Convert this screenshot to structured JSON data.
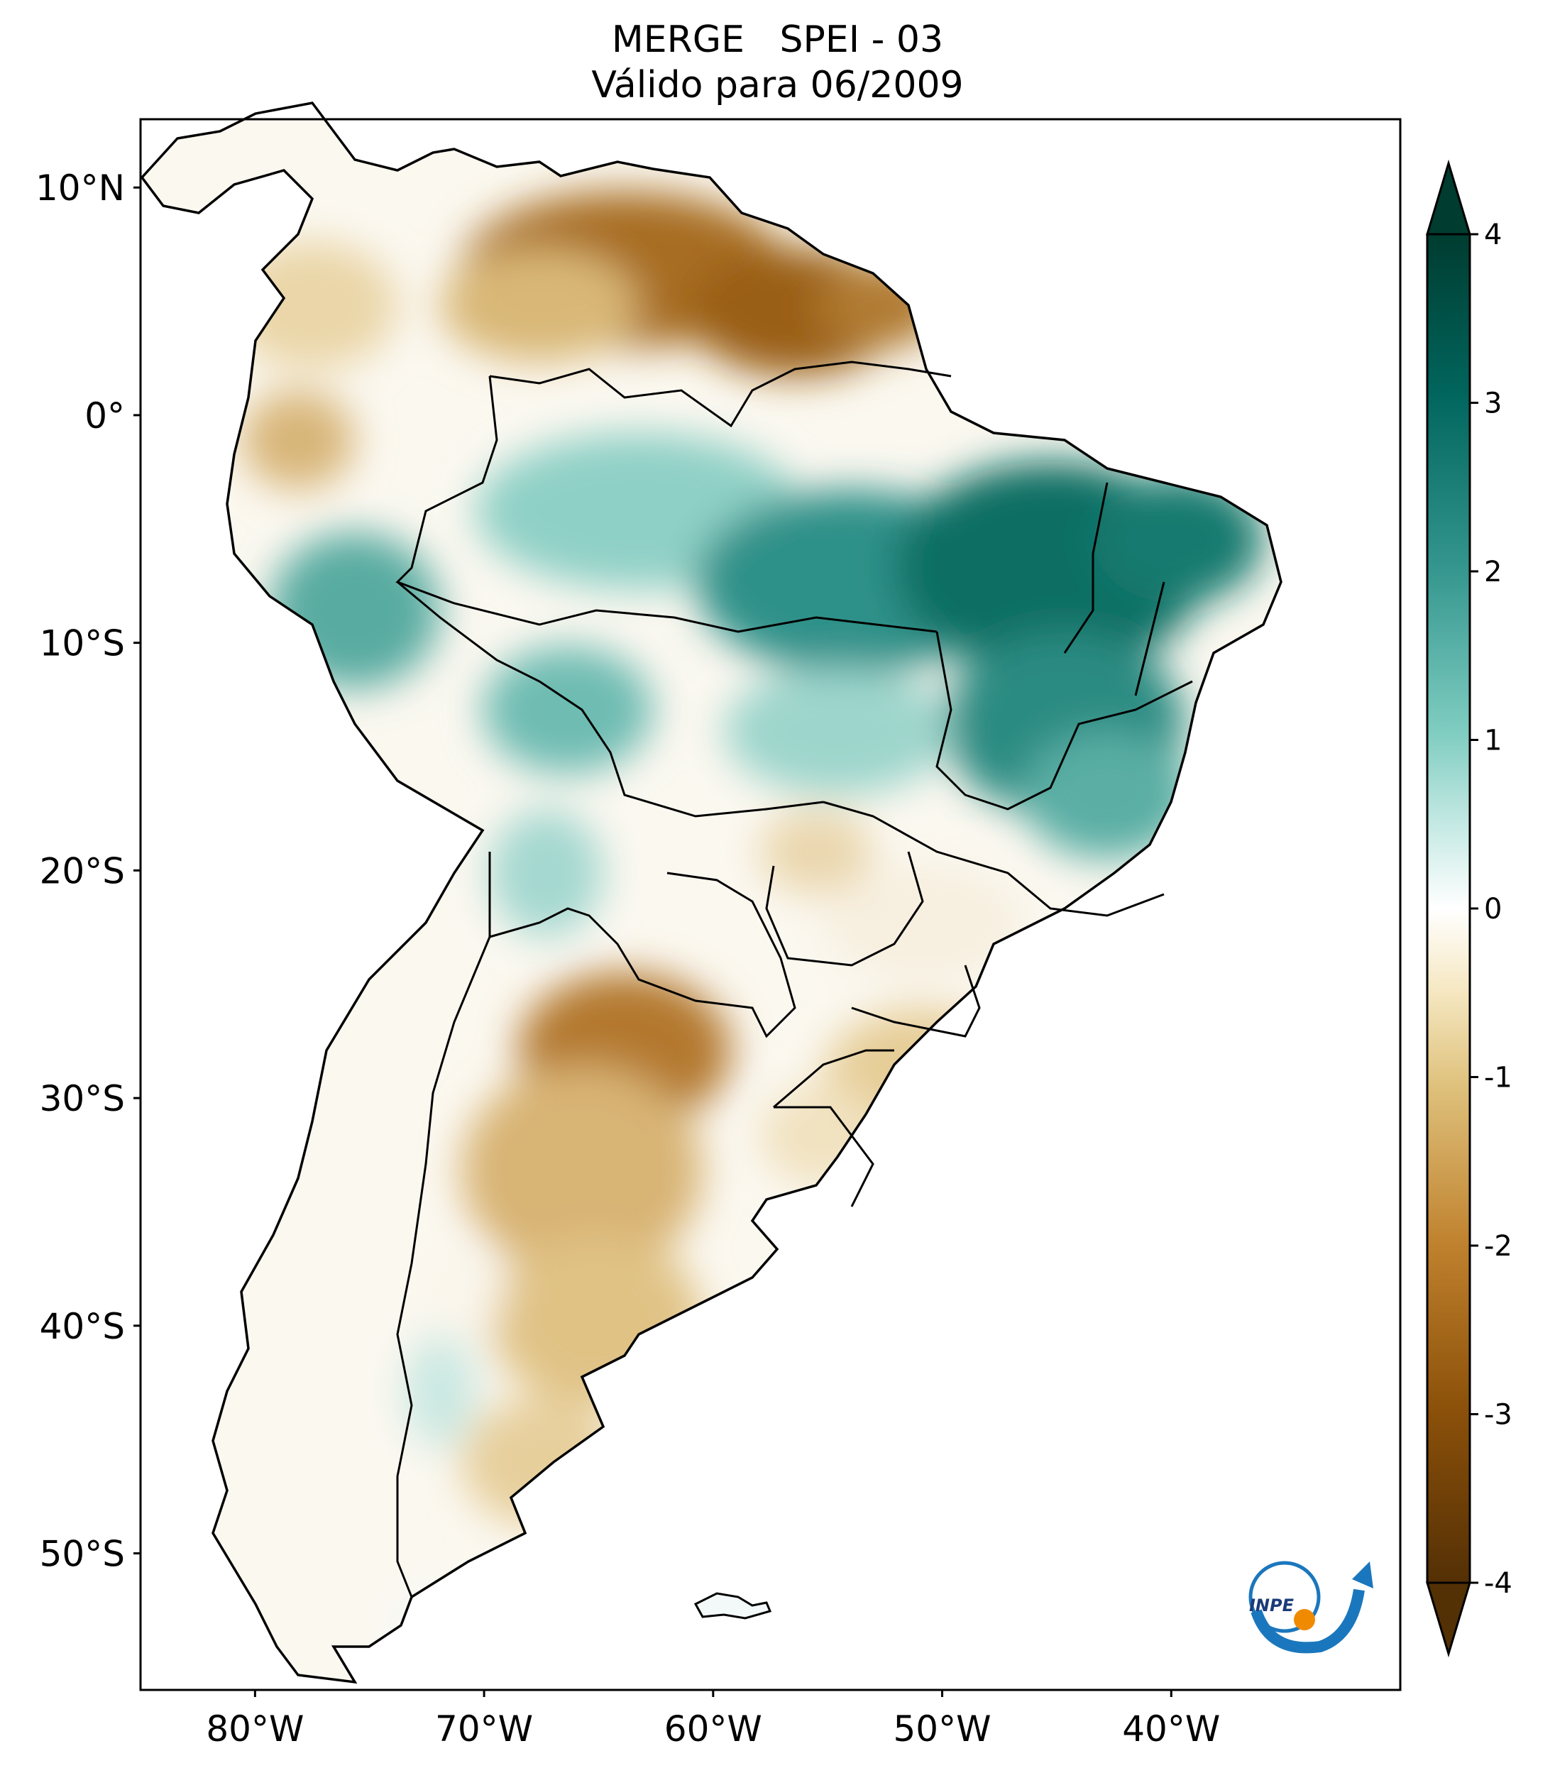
{
  "title": {
    "line1": "MERGE   SPEI - 03",
    "line2": "Válido para 06/2009"
  },
  "axes": {
    "lat_labels": [
      "10°N",
      "0°",
      "10°S",
      "20°S",
      "30°S",
      "40°S",
      "50°S"
    ],
    "lat_values": [
      10,
      0,
      -10,
      -20,
      -30,
      -40,
      -50
    ],
    "lon_labels": [
      "80°W",
      "70°W",
      "60°W",
      "50°W",
      "40°W"
    ],
    "lon_values": [
      -80,
      -70,
      -60,
      -50,
      -40
    ],
    "lon_range": [
      -85,
      -30
    ],
    "lat_range": [
      -56,
      13
    ]
  },
  "colorbar": {
    "ticks": [
      "4",
      "3",
      "2",
      "1",
      "0",
      "-1",
      "-2",
      "-3",
      "-4"
    ],
    "values": [
      4,
      3,
      2,
      1,
      0,
      -1,
      -2,
      -3,
      -4
    ],
    "range": [
      -4,
      4
    ],
    "extend": "both",
    "colors": {
      "minus4": "#543005",
      "minus3": "#8c510a",
      "minus2": "#bf812d",
      "minus1": "#dfc27d",
      "minus05": "#f6e8c3",
      "zero": "#ffffff",
      "plus05": "#c7eae5",
      "plus1": "#80cdc1",
      "plus2": "#35978f",
      "plus3": "#01665e",
      "plus4": "#003c30"
    }
  },
  "logo": {
    "text": "INPE"
  },
  "icons": {
    "logo": "inpe-logo-icon"
  }
}
